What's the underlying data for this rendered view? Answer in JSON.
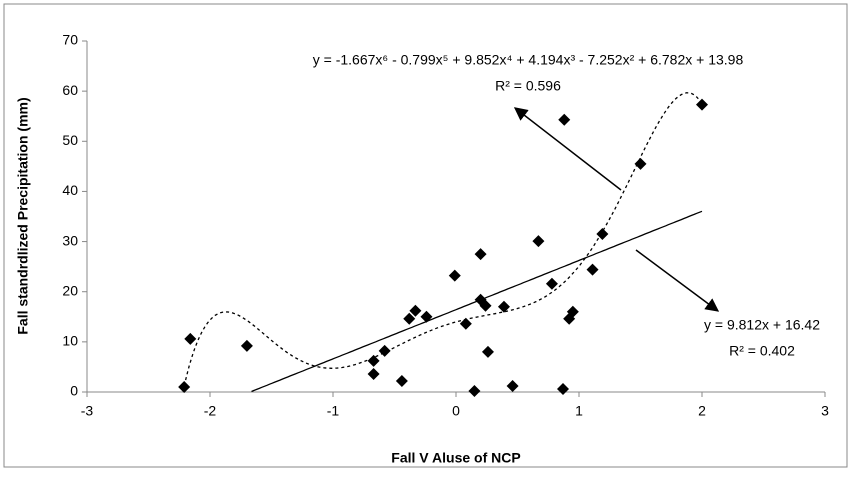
{
  "chart_data": {
    "type": "scatter",
    "x_label": "Fall V Aluse of NCP",
    "y_label": "Fall standrdlized Precipitation (mm)",
    "xlim": [
      -3,
      3
    ],
    "xticks": [
      -3,
      -2,
      -1,
      0,
      1,
      2,
      3
    ],
    "ylim": [
      0,
      70
    ],
    "yticks": [
      0,
      10,
      20,
      30,
      40,
      50,
      60,
      70
    ],
    "series": [
      {
        "color": "#000000",
        "x": [
          -2.21,
          -2.16,
          -1.7,
          -0.67,
          -0.67,
          -0.58,
          -0.44,
          -0.38,
          -0.33,
          -0.24,
          -0.01,
          0.08,
          0.15,
          0.2,
          0.2,
          0.24,
          0.26,
          0.39,
          0.46,
          0.67,
          0.78,
          0.88,
          0.87,
          0.92,
          0.95,
          1.11,
          1.19,
          1.5,
          2.0
        ],
        "values": [
          1.0,
          10.6,
          9.2,
          6.2,
          3.6,
          8.2,
          2.2,
          14.6,
          16.2,
          15.0,
          23.2,
          13.6,
          0.2,
          18.4,
          27.5,
          17.2,
          8.0,
          17.0,
          1.2,
          30.1,
          21.6,
          54.3,
          0.6,
          14.6,
          16.0,
          24.4,
          31.5,
          45.5,
          57.3
        ]
      }
    ],
    "trendlines": [
      {
        "kind": "polynomial",
        "coefficients": [
          13.98,
          6.782,
          -7.252,
          4.194,
          9.852,
          -0.799,
          -1.667
        ],
        "equation": "y = -1.667x⁶ - 0.799x⁵ + 9.852x⁴ + 4.194x³ - 7.252x² + 6.782x + 13.98",
        "r2": "R² = 0.596"
      },
      {
        "kind": "linear",
        "coefficients": [
          16.42,
          9.812
        ],
        "equation": "y = 9.812x + 16.42",
        "r2": "R² = 0.402"
      }
    ]
  }
}
